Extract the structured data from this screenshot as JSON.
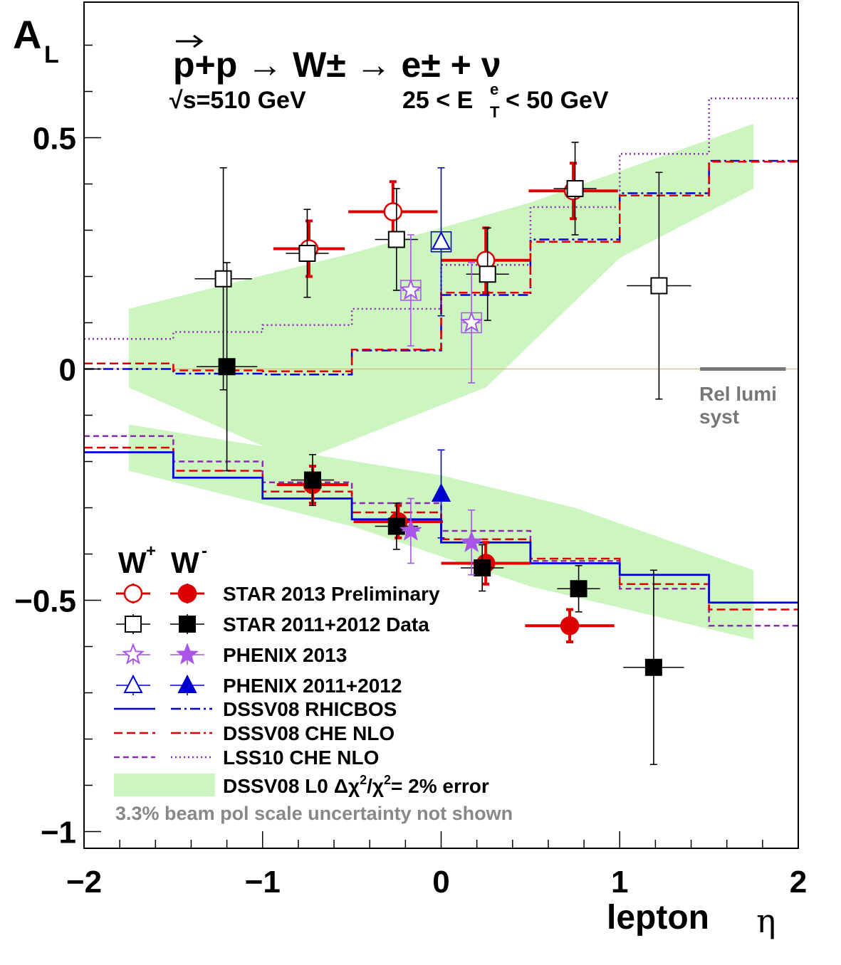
{
  "chart_data": {
    "type": "scatter",
    "title": "p+p → W± → e± + ν",
    "ylabel": "A",
    "ylabel_sub": "L",
    "xlabel": "lepton",
    "xlabel_symbol": "η",
    "energy_label": "√s=510 GeV",
    "cut_label": "25 < E",
    "cut_sup": "e",
    "cut_sub": "T",
    "cut_tail": "< 50 GeV",
    "xlim": [
      -2,
      2
    ],
    "ylim": [
      -1.04,
      0.75
    ],
    "xticks": [
      -2,
      -1,
      0,
      1,
      2
    ],
    "xtick_labels": [
      "−2",
      "−1",
      "0",
      "1",
      "2"
    ],
    "yticks": [
      -1,
      -0.5,
      0,
      0.5
    ],
    "ytick_labels": [
      "−1",
      "−0.5",
      "0",
      "0.5"
    ],
    "grid": false,
    "legend_position": "bottom-left",
    "legend_header_plus": "W",
    "legend_header_plus_sup": "+",
    "legend_header_minus": "W",
    "legend_header_minus_sup": "-",
    "rel_lumi_label_1": "Rel lumi",
    "rel_lumi_label_2": "syst",
    "rel_lumi_span": [
      1.45,
      1.93
    ],
    "footnote": "3.3% beam pol scale uncertainty not shown",
    "colors": {
      "star2013": "#dd0000",
      "star2011": "#000000",
      "phenix2013": "#a855e8",
      "phenix2011": "#0000cc",
      "rhicbos": "#0000dd",
      "che": "#dd0000",
      "lss": "#8a2bb0",
      "band": "#ccf5c0",
      "zero_line": "#d9c090",
      "footnote": "#888888"
    },
    "legend": [
      {
        "label": "STAR 2013 Preliminary",
        "left": "open-circle",
        "right": "filled-circle",
        "color": "#dd0000"
      },
      {
        "label": "STAR 2011+2012 Data",
        "left": "open-square",
        "right": "filled-square",
        "color": "#000000"
      },
      {
        "label": "PHENIX 2013",
        "left": "open-star",
        "right": "filled-star",
        "color": "#a855e8"
      },
      {
        "label": "PHENIX 2011+2012",
        "left": "open-triangle",
        "right": "filled-triangle",
        "color": "#0000cc"
      },
      {
        "label": "DSSV08  RHICBOS",
        "left": "solid",
        "right": "dashdot",
        "color": "#0000dd"
      },
      {
        "label": "DSSV08  CHE NLO",
        "left": "dashed",
        "right": "dashdot",
        "color": "#dd0000"
      },
      {
        "label": "LSS10 CHE NLO",
        "left": "dashed",
        "right": "dotted",
        "color": "#8a2bb0"
      },
      {
        "label": "DSSV08 L0",
        "label_tail": " error",
        "left": "band",
        "color": "#ccf5c0"
      }
    ],
    "legend_chi_prefix": "Δχ",
    "legend_chi_sup": "2",
    "legend_chi_mid": "/χ",
    "legend_chi_sup2": "2",
    "legend_chi_suffix": "= 2%",
    "series": [
      {
        "name": "STAR 2013 Preliminary W+",
        "marker": "open-circle",
        "color": "#dd0000",
        "points": [
          {
            "x": -0.74,
            "y": 0.26,
            "xerr": 0.2,
            "yerr": 0.06
          },
          {
            "x": -0.27,
            "y": 0.34,
            "xerr": 0.25,
            "yerr": 0.065
          },
          {
            "x": 0.25,
            "y": 0.235,
            "xerr": 0.25,
            "yerr": 0.07
          },
          {
            "x": 0.74,
            "y": 0.385,
            "xerr": 0.25,
            "yerr": 0.06
          }
        ]
      },
      {
        "name": "STAR 2013 Preliminary W-",
        "marker": "filled-circle",
        "color": "#dd0000",
        "points": [
          {
            "x": -0.72,
            "y": -0.25,
            "xerr": 0.2,
            "yerr": 0.04
          },
          {
            "x": -0.24,
            "y": -0.33,
            "xerr": 0.25,
            "yerr": 0.035
          },
          {
            "x": 0.25,
            "y": -0.42,
            "xerr": 0.25,
            "yerr": 0.045
          },
          {
            "x": 0.72,
            "y": -0.555,
            "xerr": 0.25,
            "yerr": 0.035
          }
        ]
      },
      {
        "name": "STAR 2011+2012 Data W+",
        "marker": "open-square",
        "color": "#000000",
        "points": [
          {
            "x": -1.22,
            "y": 0.195,
            "xerr": 0.16,
            "yerr": 0.24
          },
          {
            "x": -0.75,
            "y": 0.25,
            "xerr": 0.12,
            "yerr": 0.095
          },
          {
            "x": -0.25,
            "y": 0.28,
            "xerr": 0.12,
            "yerr": 0.11
          },
          {
            "x": 0.26,
            "y": 0.205,
            "xerr": 0.12,
            "yerr": 0.1
          },
          {
            "x": 0.75,
            "y": 0.39,
            "xerr": 0.12,
            "yerr": 0.1
          },
          {
            "x": 1.22,
            "y": 0.18,
            "xerr": 0.18,
            "yerr": 0.245
          }
        ]
      },
      {
        "name": "STAR 2011+2012 Data W-",
        "marker": "filled-square",
        "color": "#000000",
        "points": [
          {
            "x": -1.2,
            "y": 0.005,
            "xerr": 0.17,
            "yerr": 0.225
          },
          {
            "x": -0.72,
            "y": -0.24,
            "xerr": 0.12,
            "yerr": 0.055
          },
          {
            "x": -0.25,
            "y": -0.34,
            "xerr": 0.12,
            "yerr": 0.05
          },
          {
            "x": 0.23,
            "y": -0.43,
            "xerr": 0.12,
            "yerr": 0.05
          },
          {
            "x": 0.77,
            "y": -0.475,
            "xerr": 0.12,
            "yerr": 0.05
          },
          {
            "x": 1.19,
            "y": -0.645,
            "xerr": 0.17,
            "yerr": 0.21
          }
        ]
      },
      {
        "name": "PHENIX 2013 W+",
        "marker": "open-star",
        "color": "#a855e8",
        "points": [
          {
            "x": -0.17,
            "y": 0.17,
            "xerr": 0.05,
            "yerr": 0.12
          },
          {
            "x": 0.17,
            "y": 0.1,
            "xerr": 0.05,
            "yerr": 0.13
          }
        ]
      },
      {
        "name": "PHENIX 2013 W-",
        "marker": "filled-star",
        "color": "#a855e8",
        "points": [
          {
            "x": -0.17,
            "y": -0.35,
            "xerr": 0.05,
            "yerr": 0.07
          },
          {
            "x": 0.17,
            "y": -0.375,
            "xerr": 0.05,
            "yerr": 0.07
          }
        ]
      },
      {
        "name": "PHENIX 2011+2012 W+",
        "marker": "open-triangle",
        "color": "#0000cc",
        "points": [
          {
            "x": 0.0,
            "y": 0.275,
            "xerr": 0.0,
            "yerr": 0.16
          }
        ]
      },
      {
        "name": "PHENIX 2011+2012 W-",
        "marker": "filled-triangle",
        "color": "#0000cc",
        "points": [
          {
            "x": 0.0,
            "y": -0.27,
            "xerr": 0.0,
            "yerr": 0.095
          }
        ]
      }
    ],
    "curves": {
      "edges": [
        -2,
        -1.5,
        -1,
        -0.5,
        0,
        0.5,
        1,
        1.5,
        2
      ],
      "wplus_dssv_rhicbos": [
        0.0,
        -0.01,
        -0.012,
        0.04,
        0.16,
        0.28,
        0.38,
        0.45
      ],
      "wplus_dssv_che": [
        0.012,
        -0.003,
        -0.005,
        0.042,
        0.165,
        0.275,
        0.375,
        0.448
      ],
      "wplus_lss10": [
        0.065,
        0.08,
        0.095,
        0.13,
        0.225,
        0.35,
        0.465,
        0.585
      ],
      "wminus_dssv_rhicbos": [
        -0.18,
        -0.235,
        -0.28,
        -0.325,
        -0.375,
        -0.42,
        -0.445,
        -0.505
      ],
      "wminus_dssv_che": [
        -0.17,
        -0.22,
        -0.265,
        -0.31,
        -0.368,
        -0.41,
        -0.465,
        -0.52
      ],
      "wminus_lss10": [
        -0.145,
        -0.2,
        -0.245,
        -0.29,
        -0.35,
        -0.415,
        -0.475,
        -0.555
      ],
      "band_upper": {
        "x": [
          -1.75,
          -0.5,
          0.5,
          1.75
        ],
        "y": [
          0.13,
          0.25,
          0.36,
          0.53
        ]
      },
      "band_lower": {
        "x": [
          -1.75,
          -0.8,
          0.25,
          1.0,
          1.75
        ],
        "y": [
          -0.04,
          -0.2,
          -0.04,
          0.24,
          0.39
        ]
      },
      "band_minus_upper": {
        "x": [
          -1.75,
          0.0,
          0.75,
          1.75
        ],
        "y": [
          -0.12,
          -0.23,
          -0.3,
          -0.435
        ]
      },
      "band_minus_lower": {
        "x": [
          -1.75,
          -0.5,
          0.5,
          1.75
        ],
        "y": [
          -0.22,
          -0.34,
          -0.47,
          -0.585
        ]
      }
    }
  }
}
